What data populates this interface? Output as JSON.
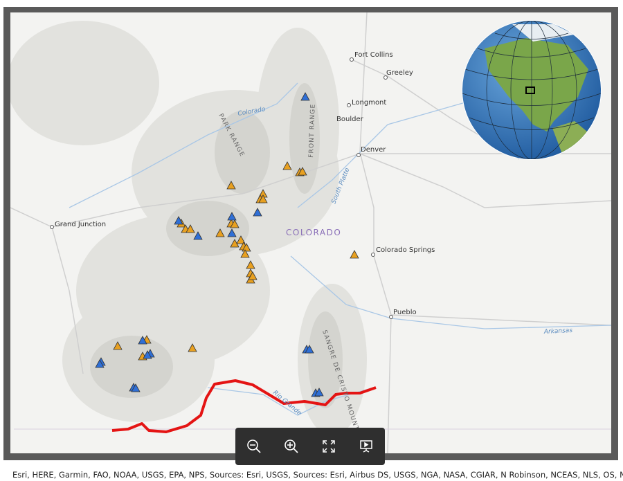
{
  "map": {
    "cities": [
      "Fort Collins",
      "Greeley",
      "Longmont",
      "Boulder",
      "Denver",
      "Grand Junction",
      "Colorado Springs",
      "Pueblo"
    ],
    "state": "COLORADO",
    "ranges": [
      "PARK RANGE",
      "FRONT RANGE",
      "SANGRE DE CRISTO MOUNTAINS"
    ],
    "rivers": [
      "Colorado",
      "South Platte",
      "Rio Grande",
      "Arkansas"
    ]
  },
  "attribution": "Esri, HERE, Garmin, FAO, NOAA, USGS, EPA, NPS, Sources: Esri, USGS, Sources: Esri, Airbus DS, USGS, NGA, NASA, CGIAR, N Robinson, NCEAS, NLS, OS, NMA,"
}
